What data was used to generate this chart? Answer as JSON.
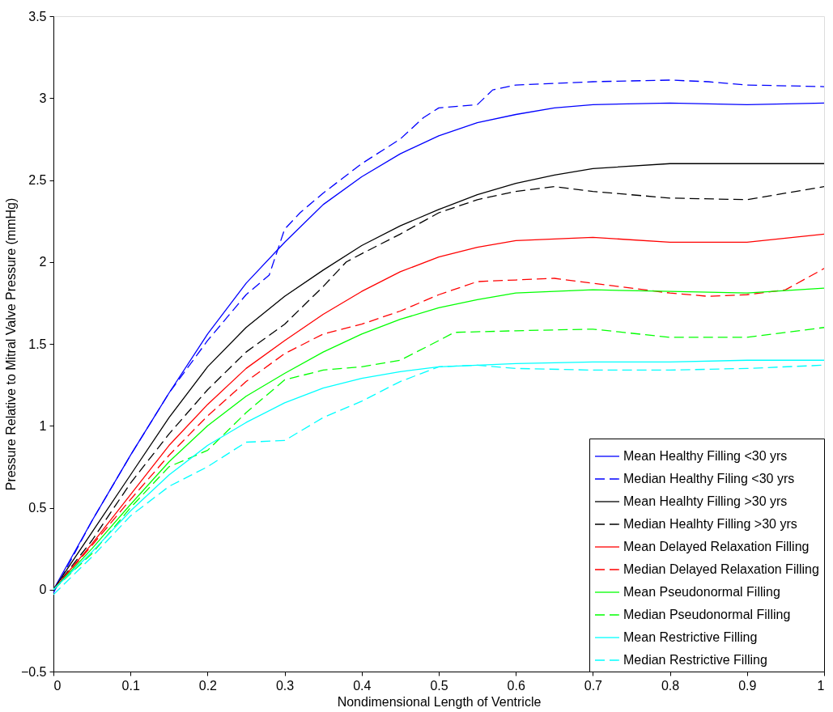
{
  "chart_data": {
    "type": "line",
    "xlabel": "Nondimensional Length of Ventricle",
    "ylabel": "Pressure Relative to Mitral Valve Pressure (mmHg)",
    "xlim": [
      0,
      1
    ],
    "ylim": [
      -0.5,
      3.5
    ],
    "xticks": [
      0,
      0.1,
      0.2,
      0.3,
      0.4,
      0.5,
      0.6,
      0.7,
      0.8,
      0.9,
      1
    ],
    "yticks": [
      -0.5,
      0,
      0.5,
      1,
      1.5,
      2,
      2.5,
      3,
      3.5
    ],
    "grid": false,
    "legend": "bottom right",
    "marker": "none",
    "series": [
      {
        "name": "Mean Healthy Filling <30 yrs",
        "color": "#0000ff",
        "line_style": "solid",
        "x": [
          0,
          0.05,
          0.1,
          0.15,
          0.2,
          0.25,
          0.3,
          0.35,
          0.4,
          0.45,
          0.5,
          0.55,
          0.6,
          0.65,
          0.7,
          0.8,
          0.9,
          1.0
        ],
        "values": [
          0,
          0.42,
          0.82,
          1.2,
          1.56,
          1.87,
          2.12,
          2.35,
          2.52,
          2.66,
          2.77,
          2.85,
          2.9,
          2.94,
          2.96,
          2.97,
          2.96,
          2.97
        ]
      },
      {
        "name": "Median Healthy Filing <30 yrs",
        "color": "#0000ff",
        "line_style": "dashed",
        "x": [
          0,
          0.05,
          0.1,
          0.15,
          0.2,
          0.25,
          0.28,
          0.3,
          0.32,
          0.35,
          0.4,
          0.45,
          0.48,
          0.5,
          0.55,
          0.57,
          0.6,
          0.7,
          0.8,
          0.85,
          0.9,
          1.0
        ],
        "values": [
          -0.02,
          0.42,
          0.82,
          1.2,
          1.52,
          1.8,
          1.92,
          2.2,
          2.3,
          2.42,
          2.6,
          2.75,
          2.88,
          2.94,
          2.96,
          3.05,
          3.08,
          3.1,
          3.11,
          3.1,
          3.08,
          3.07
        ]
      },
      {
        "name": "Mean Healhty Filling >30 yrs",
        "color": "#000000",
        "line_style": "solid",
        "x": [
          0,
          0.05,
          0.1,
          0.15,
          0.2,
          0.25,
          0.3,
          0.35,
          0.4,
          0.45,
          0.5,
          0.55,
          0.6,
          0.65,
          0.7,
          0.8,
          0.9,
          1.0
        ],
        "values": [
          0,
          0.35,
          0.7,
          1.05,
          1.36,
          1.6,
          1.79,
          1.95,
          2.1,
          2.22,
          2.32,
          2.41,
          2.48,
          2.53,
          2.57,
          2.6,
          2.6,
          2.6
        ]
      },
      {
        "name": "Median Healhty Filling >30 yrs",
        "color": "#000000",
        "line_style": "dashed",
        "x": [
          0,
          0.05,
          0.1,
          0.15,
          0.2,
          0.25,
          0.3,
          0.35,
          0.38,
          0.4,
          0.45,
          0.5,
          0.55,
          0.6,
          0.65,
          0.7,
          0.8,
          0.9,
          0.95,
          1.0
        ],
        "values": [
          0,
          0.3,
          0.65,
          0.95,
          1.22,
          1.45,
          1.62,
          1.85,
          2.0,
          2.05,
          2.17,
          2.3,
          2.38,
          2.43,
          2.46,
          2.43,
          2.39,
          2.38,
          2.42,
          2.46
        ]
      },
      {
        "name": "Mean Delayed Relaxation Filling",
        "color": "#ff0000",
        "line_style": "solid",
        "x": [
          0,
          0.05,
          0.1,
          0.15,
          0.2,
          0.25,
          0.3,
          0.35,
          0.4,
          0.45,
          0.5,
          0.55,
          0.6,
          0.7,
          0.8,
          0.9,
          1.0
        ],
        "values": [
          0,
          0.28,
          0.58,
          0.88,
          1.13,
          1.35,
          1.52,
          1.68,
          1.82,
          1.94,
          2.03,
          2.09,
          2.13,
          2.15,
          2.12,
          2.12,
          2.17
        ]
      },
      {
        "name": "Median Delayed Relaxation Filling",
        "color": "#ff0000",
        "line_style": "dashed",
        "x": [
          0,
          0.05,
          0.1,
          0.15,
          0.2,
          0.25,
          0.3,
          0.35,
          0.4,
          0.45,
          0.5,
          0.55,
          0.6,
          0.65,
          0.7,
          0.8,
          0.85,
          0.9,
          0.95,
          1.0
        ],
        "values": [
          0,
          0.27,
          0.55,
          0.82,
          1.06,
          1.27,
          1.44,
          1.56,
          1.62,
          1.7,
          1.8,
          1.88,
          1.89,
          1.9,
          1.87,
          1.81,
          1.79,
          1.8,
          1.83,
          1.96
        ]
      },
      {
        "name": "Mean Pseudonormal Filling",
        "color": "#00ff00",
        "line_style": "solid",
        "x": [
          0,
          0.05,
          0.1,
          0.15,
          0.2,
          0.25,
          0.3,
          0.35,
          0.4,
          0.45,
          0.5,
          0.55,
          0.6,
          0.7,
          0.8,
          0.9,
          1.0
        ],
        "values": [
          0,
          0.25,
          0.52,
          0.78,
          1.0,
          1.18,
          1.32,
          1.45,
          1.56,
          1.65,
          1.72,
          1.77,
          1.81,
          1.83,
          1.82,
          1.81,
          1.84
        ]
      },
      {
        "name": "Median Pseudonormal Filling",
        "color": "#00ff00",
        "line_style": "dashed",
        "x": [
          0,
          0.05,
          0.1,
          0.15,
          0.2,
          0.25,
          0.3,
          0.35,
          0.4,
          0.45,
          0.5,
          0.52,
          0.6,
          0.7,
          0.8,
          0.9,
          1.0
        ],
        "values": [
          0,
          0.22,
          0.5,
          0.75,
          0.85,
          1.08,
          1.28,
          1.34,
          1.36,
          1.4,
          1.52,
          1.57,
          1.58,
          1.59,
          1.54,
          1.54,
          1.6
        ]
      },
      {
        "name": "Mean Restrictive Filling",
        "color": "#00ffff",
        "line_style": "solid",
        "x": [
          0,
          0.05,
          0.1,
          0.15,
          0.2,
          0.25,
          0.3,
          0.35,
          0.4,
          0.45,
          0.5,
          0.6,
          0.7,
          0.8,
          0.9,
          1.0
        ],
        "values": [
          0,
          0.23,
          0.48,
          0.7,
          0.88,
          1.02,
          1.14,
          1.23,
          1.29,
          1.33,
          1.36,
          1.38,
          1.39,
          1.39,
          1.4,
          1.4
        ]
      },
      {
        "name": "Median Restrictive Filling",
        "color": "#00ffff",
        "line_style": "dashed",
        "x": [
          0,
          0.05,
          0.1,
          0.15,
          0.2,
          0.25,
          0.3,
          0.35,
          0.4,
          0.45,
          0.5,
          0.55,
          0.6,
          0.7,
          0.8,
          0.9,
          1.0
        ],
        "values": [
          -0.03,
          0.2,
          0.45,
          0.63,
          0.75,
          0.9,
          0.91,
          1.05,
          1.15,
          1.27,
          1.36,
          1.37,
          1.35,
          1.34,
          1.34,
          1.35,
          1.37
        ]
      }
    ]
  }
}
